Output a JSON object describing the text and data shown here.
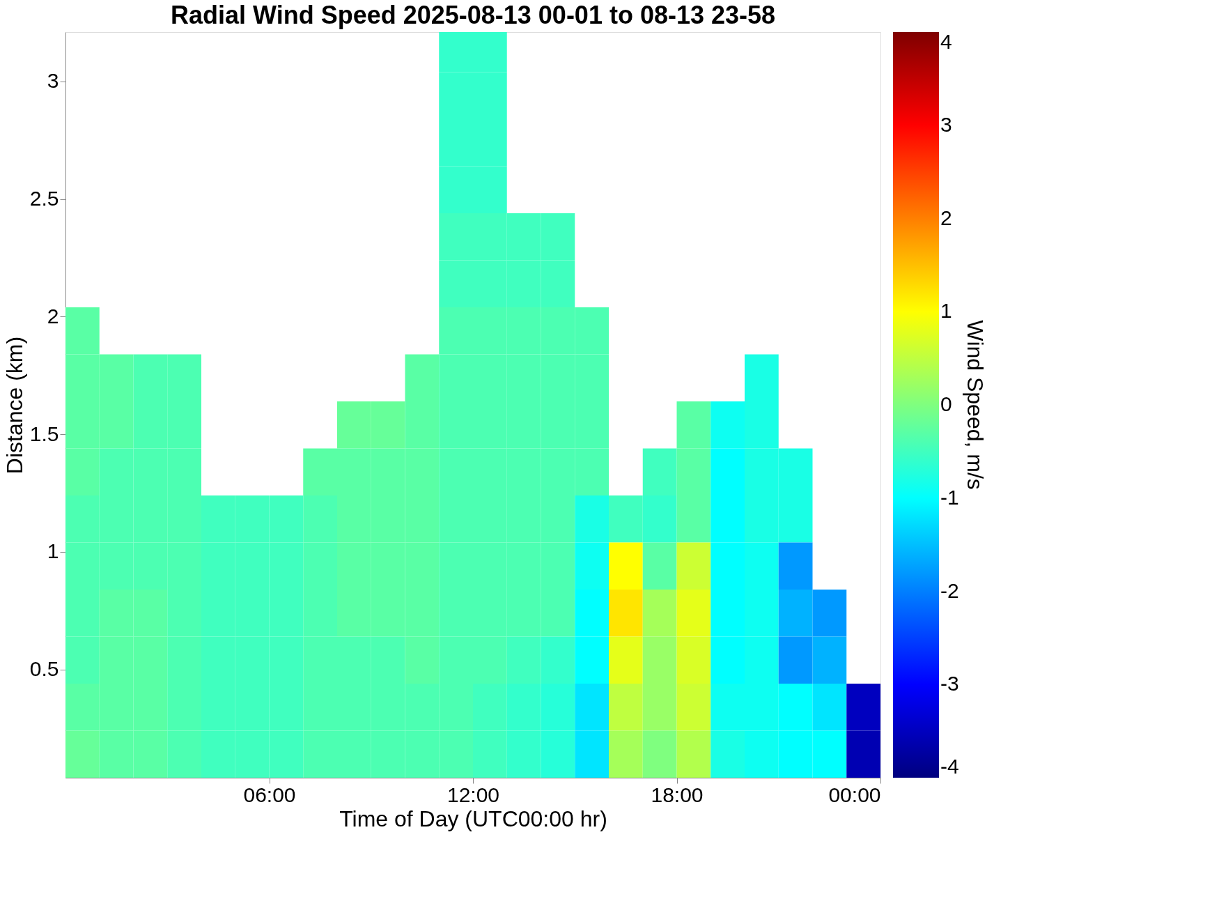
{
  "chart_data": {
    "type": "heatmap",
    "title": "Radial Wind Speed 2025-08-13 00-01 to 08-13 23-58",
    "xlabel": "Time of Day (UTC00:00 hr)",
    "ylabel": "Distance (km)",
    "clabel": "Wind Speed, m/s",
    "x": [
      0.5,
      1.5,
      2.5,
      3.5,
      4.5,
      5.5,
      6.5,
      7.5,
      8.5,
      9.5,
      10.5,
      11.5,
      12.5,
      13.5,
      14.5,
      15.5,
      16.5,
      17.5,
      18.5,
      19.5,
      20.5,
      21.5,
      22.5,
      23.5
    ],
    "y": [
      3.14,
      2.94,
      2.74,
      2.54,
      2.34,
      2.14,
      1.94,
      1.74,
      1.54,
      1.34,
      1.14,
      0.94,
      0.74,
      0.54,
      0.34,
      0.14
    ],
    "xlim": [
      0,
      24
    ],
    "ylim": [
      0.04,
      3.21
    ],
    "xticks": [
      {
        "value": 6,
        "label": "06:00"
      },
      {
        "value": 12,
        "label": "12:00"
      },
      {
        "value": 18,
        "label": "18:00"
      },
      {
        "value": 24,
        "label": "00:00"
      }
    ],
    "yticks": [
      0.5,
      1,
      1.5,
      2,
      2.5,
      3
    ],
    "clim": [
      -4,
      4
    ],
    "cticks": [
      -4,
      -3,
      -2,
      -1,
      0,
      1,
      2,
      3,
      4
    ],
    "cells": [
      [
        null,
        null,
        null,
        null,
        null,
        null,
        null,
        null,
        null,
        null,
        null,
        -0.6,
        -0.6,
        null,
        null,
        null,
        null,
        null,
        null,
        null,
        null,
        null,
        null,
        null
      ],
      [
        null,
        null,
        null,
        null,
        null,
        null,
        null,
        null,
        null,
        null,
        null,
        -0.6,
        -0.6,
        null,
        null,
        null,
        null,
        null,
        null,
        null,
        null,
        null,
        null,
        null
      ],
      [
        null,
        null,
        null,
        null,
        null,
        null,
        null,
        null,
        null,
        null,
        null,
        -0.6,
        -0.6,
        null,
        null,
        null,
        null,
        null,
        null,
        null,
        null,
        null,
        null,
        null
      ],
      [
        null,
        null,
        null,
        null,
        null,
        null,
        null,
        null,
        null,
        null,
        null,
        -0.6,
        -0.6,
        null,
        null,
        null,
        null,
        null,
        null,
        null,
        null,
        null,
        null,
        null
      ],
      [
        null,
        null,
        null,
        null,
        null,
        null,
        null,
        null,
        null,
        null,
        null,
        -0.5,
        -0.5,
        -0.5,
        -0.5,
        null,
        null,
        null,
        null,
        null,
        null,
        null,
        null,
        null
      ],
      [
        null,
        null,
        null,
        null,
        null,
        null,
        null,
        null,
        null,
        null,
        null,
        -0.5,
        -0.5,
        -0.5,
        -0.5,
        null,
        null,
        null,
        null,
        null,
        null,
        null,
        null,
        null
      ],
      [
        -0.3,
        null,
        null,
        null,
        null,
        null,
        null,
        null,
        null,
        null,
        null,
        -0.4,
        -0.4,
        -0.4,
        -0.4,
        -0.4,
        null,
        null,
        null,
        null,
        null,
        null,
        null,
        null
      ],
      [
        -0.3,
        -0.3,
        -0.4,
        -0.4,
        null,
        null,
        null,
        null,
        null,
        null,
        -0.3,
        -0.4,
        -0.4,
        -0.4,
        -0.4,
        -0.4,
        null,
        null,
        null,
        null,
        -0.8,
        null,
        null,
        null
      ],
      [
        -0.3,
        -0.3,
        -0.4,
        -0.4,
        null,
        null,
        null,
        null,
        -0.2,
        -0.2,
        -0.3,
        -0.4,
        -0.4,
        -0.4,
        -0.4,
        -0.4,
        null,
        null,
        -0.3,
        -0.9,
        -0.8,
        null,
        null,
        null
      ],
      [
        -0.3,
        -0.4,
        -0.4,
        -0.4,
        null,
        null,
        null,
        -0.3,
        -0.3,
        -0.3,
        -0.3,
        -0.4,
        -0.4,
        -0.4,
        -0.4,
        -0.4,
        null,
        -0.5,
        -0.3,
        -1.0,
        -0.8,
        -0.8,
        null,
        null
      ],
      [
        -0.4,
        -0.4,
        -0.4,
        -0.4,
        -0.5,
        -0.5,
        -0.5,
        -0.4,
        -0.3,
        -0.3,
        -0.3,
        -0.4,
        -0.4,
        -0.4,
        -0.4,
        -0.8,
        -0.5,
        -0.6,
        -0.3,
        -1.0,
        -0.8,
        -0.8,
        null,
        null
      ],
      [
        -0.4,
        -0.4,
        -0.4,
        -0.4,
        -0.5,
        -0.5,
        -0.5,
        -0.4,
        -0.3,
        -0.3,
        -0.3,
        -0.4,
        -0.4,
        -0.4,
        -0.4,
        -0.9,
        1.0,
        -0.3,
        0.6,
        -1.0,
        -0.9,
        -1.8,
        null,
        null
      ],
      [
        -0.4,
        -0.3,
        -0.3,
        -0.4,
        -0.5,
        -0.5,
        -0.5,
        -0.4,
        -0.3,
        -0.3,
        -0.3,
        -0.4,
        -0.4,
        -0.4,
        -0.4,
        -1.0,
        1.2,
        0.3,
        0.8,
        -1.0,
        -0.9,
        -1.6,
        -1.8,
        null
      ],
      [
        -0.4,
        -0.3,
        -0.3,
        -0.4,
        -0.5,
        -0.5,
        -0.5,
        -0.4,
        -0.4,
        -0.4,
        -0.3,
        -0.4,
        -0.4,
        -0.5,
        -0.6,
        -1.0,
        0.8,
        0.2,
        0.7,
        -1.0,
        -0.9,
        -1.8,
        -1.6,
        null
      ],
      [
        -0.3,
        -0.3,
        -0.3,
        -0.4,
        -0.5,
        -0.5,
        -0.5,
        -0.4,
        -0.4,
        -0.4,
        -0.4,
        -0.4,
        -0.5,
        -0.6,
        -0.7,
        -1.2,
        0.5,
        0.2,
        0.6,
        -0.9,
        -0.9,
        -1.0,
        -1.2,
        -3.5
      ],
      [
        -0.2,
        -0.3,
        -0.3,
        -0.4,
        -0.5,
        -0.5,
        -0.5,
        -0.4,
        -0.4,
        -0.4,
        -0.4,
        -0.4,
        -0.5,
        -0.6,
        -0.7,
        -1.2,
        0.3,
        0.0,
        0.4,
        -0.8,
        -0.9,
        -1.0,
        -1.0,
        -3.6
      ]
    ]
  }
}
